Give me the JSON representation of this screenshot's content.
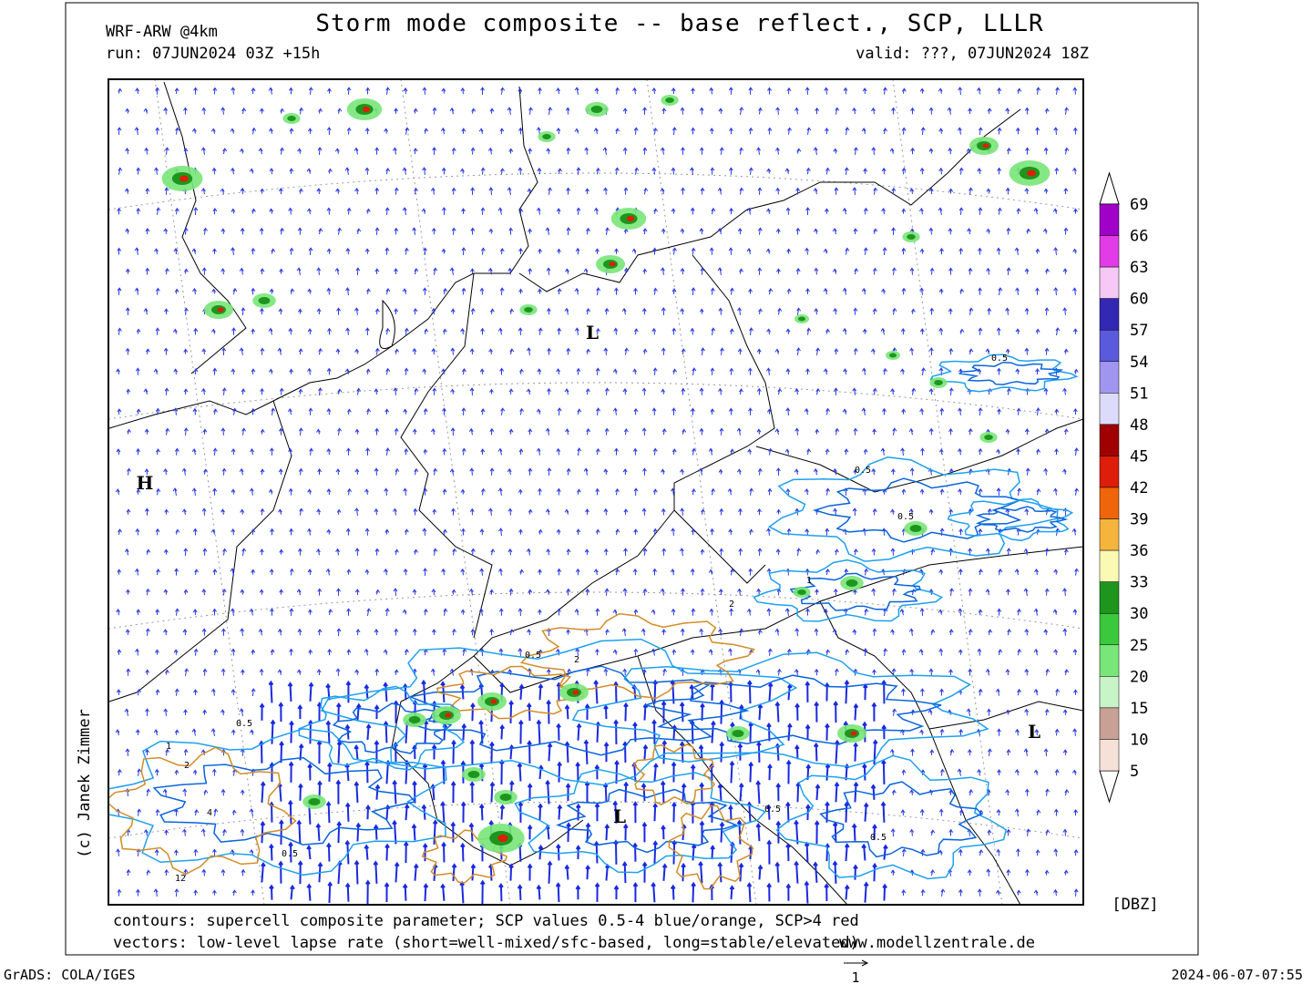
{
  "header": {
    "model": "WRF-ARW @4km",
    "title": "Storm mode composite -- base reflect., SCP, LLLR",
    "run": "run: 07JUN2024 03Z +15h",
    "valid": "valid: ???, 07JUN2024 18Z"
  },
  "map": {
    "pressure_labels": [
      "L",
      "H",
      "L",
      "L"
    ],
    "contour_labels": [
      "0.5",
      "0.5",
      "0.5",
      "1",
      "2",
      "0.5",
      "2",
      "1",
      "0.5",
      "2",
      "0.5",
      "4",
      "12",
      "0.5",
      "0.5"
    ],
    "credit": "(c) Janek Zimmer"
  },
  "legend": {
    "levels": [
      69,
      66,
      63,
      60,
      57,
      54,
      51,
      48,
      45,
      42,
      39,
      36,
      33,
      30,
      25,
      20,
      15,
      10,
      5
    ],
    "colors": [
      "#a000c8",
      "#e13ce6",
      "#f5c8f5",
      "#3228b4",
      "#5a5adc",
      "#a096f0",
      "#dcdcfa",
      "#a00000",
      "#dc1e0a",
      "#f0640a",
      "#f5b43c",
      "#fafab4",
      "#1e961e",
      "#3cc83c",
      "#78e678",
      "#c8f5c8",
      "#c8a096",
      "#f5e1d7"
    ],
    "unit": "[DBZ]"
  },
  "footer": {
    "contours_note": "contours: supercell composite parameter; SCP values 0.5-4 blue/orange, SCP>4 red",
    "vectors_note": "vectors: low-level lapse rate (short=well-mixed/sfc-based, long=stable/elevated)",
    "website": "www.modellzentrale.de",
    "software": "GrADS: COLA/IGES",
    "vector_scale": "1",
    "timestamp": "2024-06-07-07:55"
  }
}
